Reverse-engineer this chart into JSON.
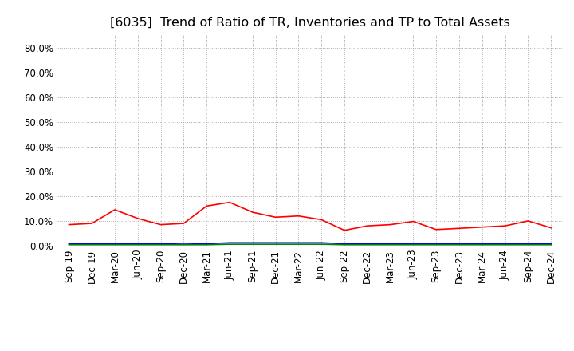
{
  "title": "[6035]  Trend of Ratio of TR, Inventories and TP to Total Assets",
  "x_labels": [
    "Sep-19",
    "Dec-19",
    "Mar-20",
    "Jun-20",
    "Sep-20",
    "Dec-20",
    "Mar-21",
    "Jun-21",
    "Sep-21",
    "Dec-21",
    "Mar-22",
    "Jun-22",
    "Sep-22",
    "Dec-22",
    "Mar-23",
    "Jun-23",
    "Sep-23",
    "Dec-23",
    "Mar-24",
    "Jun-24",
    "Sep-24",
    "Dec-24"
  ],
  "trade_receivables": [
    0.085,
    0.09,
    0.145,
    0.11,
    0.085,
    0.09,
    0.16,
    0.175,
    0.135,
    0.115,
    0.12,
    0.105,
    0.062,
    0.08,
    0.085,
    0.098,
    0.065,
    0.07,
    0.075,
    0.08,
    0.1,
    0.072
  ],
  "inventories": [
    0.008,
    0.008,
    0.008,
    0.008,
    0.008,
    0.01,
    0.008,
    0.012,
    0.012,
    0.012,
    0.012,
    0.012,
    0.008,
    0.008,
    0.008,
    0.008,
    0.008,
    0.008,
    0.008,
    0.008,
    0.008,
    0.008
  ],
  "trade_payables": [
    0.004,
    0.004,
    0.004,
    0.004,
    0.004,
    0.004,
    0.004,
    0.006,
    0.006,
    0.006,
    0.006,
    0.006,
    0.004,
    0.004,
    0.004,
    0.004,
    0.004,
    0.004,
    0.004,
    0.004,
    0.004,
    0.004
  ],
  "ylim": [
    0.0,
    0.85
  ],
  "yticks": [
    0.0,
    0.1,
    0.2,
    0.3,
    0.4,
    0.5,
    0.6,
    0.7,
    0.8
  ],
  "ytick_labels": [
    "0.0%",
    "10.0%",
    "20.0%",
    "30.0%",
    "40.0%",
    "50.0%",
    "60.0%",
    "70.0%",
    "80.0%"
  ],
  "tr_color": "#ff0000",
  "inv_color": "#0000ff",
  "tp_color": "#008000",
  "bg_color": "#ffffff",
  "plot_bg_color": "#ffffff",
  "grid_color": "#aaaaaa",
  "title_fontsize": 11.5,
  "tick_fontsize": 8.5,
  "legend_fontsize": 9
}
